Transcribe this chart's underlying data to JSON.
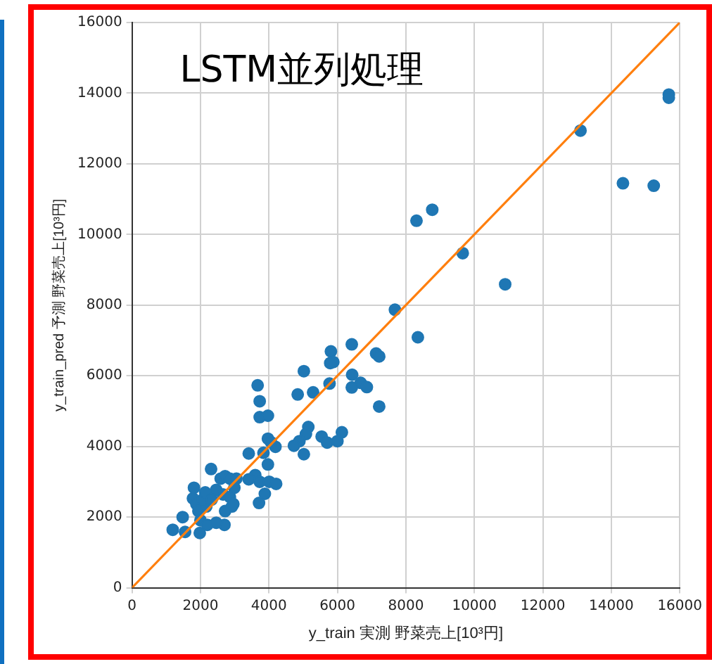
{
  "chart_data": {
    "type": "scatter",
    "title": "LSTM並列処理",
    "xlabel": "y_train 実測 野菜売上[10³円]",
    "ylabel": "y_train_pred 予測 野菜売上[10³円]",
    "xlim": [
      0,
      16000
    ],
    "ylim": [
      0,
      16000
    ],
    "xticks": [
      0,
      2000,
      4000,
      6000,
      8000,
      10000,
      12000,
      14000,
      16000
    ],
    "yticks": [
      0,
      2000,
      4000,
      6000,
      8000,
      10000,
      12000,
      14000,
      16000
    ],
    "grid": true,
    "marker": "circle",
    "series": [
      {
        "type": "scatter",
        "color": "#1f77b4",
        "x": [
          15680,
          15680,
          13100,
          14340,
          15240,
          8310,
          8770,
          9660,
          10900,
          7680,
          8350,
          6420,
          5810,
          5880,
          5790,
          7130,
          7220,
          5020,
          6430,
          6680,
          6860,
          6420,
          5770,
          4840,
          5290,
          7220,
          3670,
          3730,
          3730,
          3970,
          6130,
          5150,
          5080,
          4890,
          4730,
          5540,
          5700,
          6000,
          5020,
          3970,
          4190,
          3970,
          3410,
          4060,
          3840,
          3600,
          3730,
          4010,
          4210,
          3880,
          3710,
          3410,
          1190,
          1480,
          1550,
          1810,
          1780,
          1880,
          1940,
          2000,
          1980,
          2170,
          2200,
          2310,
          2460,
          2590,
          2720,
          2860,
          2660,
          2920,
          2700,
          2990,
          3050,
          2070,
          2140,
          2330,
          2720,
          2460,
          2860,
          2960
        ],
        "values": [
          13960,
          13870,
          12940,
          11450,
          11380,
          10390,
          10700,
          9470,
          8590,
          7870,
          7090,
          6890,
          6690,
          6390,
          6360,
          6630,
          6550,
          6130,
          6030,
          5800,
          5680,
          5670,
          5780,
          5470,
          5530,
          5130,
          5730,
          5280,
          4830,
          4870,
          4400,
          4550,
          4350,
          4150,
          4020,
          4280,
          4110,
          4150,
          3780,
          4220,
          3990,
          3490,
          3800,
          4120,
          3820,
          3190,
          3000,
          3000,
          2940,
          2660,
          2400,
          3070,
          1640,
          2000,
          1580,
          2830,
          2530,
          2370,
          2170,
          1910,
          1550,
          2300,
          1780,
          3360,
          2770,
          3090,
          3160,
          3090,
          2640,
          2300,
          1780,
          2830,
          3090,
          2500,
          2700,
          2500,
          2170,
          1840,
          2570,
          2370
        ]
      },
      {
        "type": "line",
        "color": "#ff7f0e",
        "marker": "none",
        "x": [
          0,
          16000
        ],
        "values": [
          0,
          16000
        ]
      }
    ]
  }
}
